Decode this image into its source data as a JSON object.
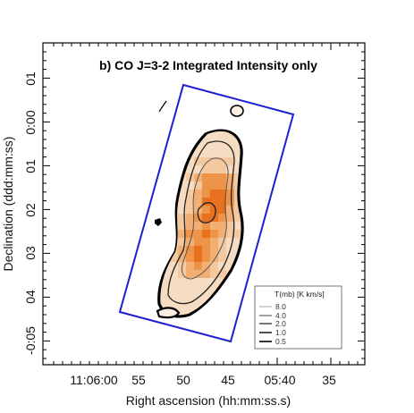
{
  "chart_data": {
    "type": "heatmap",
    "title": "b) CO J=3-2 Integrated Intensity only",
    "xlabel": "Right ascension (hh:mm:ss.s)",
    "ylabel": "Declination (ddd:mm:ss)",
    "x_tick_labels": [
      "11:06:00",
      "55",
      "50",
      "45",
      "05:40",
      "35"
    ],
    "y_tick_labels": [
      "01",
      "0:00",
      "01",
      "02",
      "03",
      "04",
      "-0:05"
    ],
    "legend": {
      "title": "T(mb) [K km/s]",
      "position": "bottom-right",
      "entries": [
        {
          "label": "8.0",
          "color": "#c8c8c8"
        },
        {
          "label": "4.0",
          "color": "#8a8a8a"
        },
        {
          "label": "2.0",
          "color": "#555555"
        },
        {
          "label": "1.0",
          "color": "#222222"
        },
        {
          "label": "0.5",
          "color": "#000000"
        }
      ]
    },
    "colors": {
      "frame": "#000000",
      "coverage_outline": "#1f1fd2",
      "emission_low": "#f6dcc2",
      "emission_mid": "#f2ae73",
      "emission_high": "#e8701f"
    }
  }
}
